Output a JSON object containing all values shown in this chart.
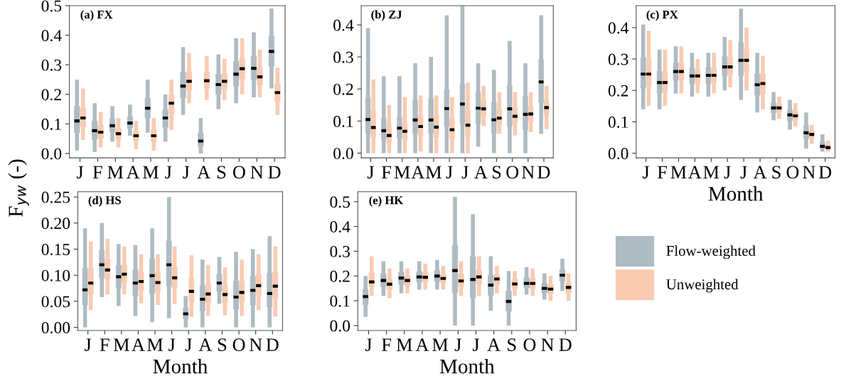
{
  "chart_data": [
    {
      "type": "box",
      "title": "(a) FX",
      "ylabel": "F$_{yw}$ (-)",
      "categories": [
        "J",
        "F",
        "M",
        "A",
        "M",
        "J",
        "J",
        "A",
        "S",
        "O",
        "N",
        "D"
      ],
      "ylim": [
        -0.015,
        0.5
      ],
      "yticks": [
        {
          "value": 0.0,
          "label": "0.0"
        },
        0.1,
        0.2,
        0.3,
        0.4,
        0.5
      ],
      "series": [
        {
          "color": "#aebbc3",
          "boxes": [
            {
              "low": 0.01,
              "q1": 0.07,
              "median": 0.11,
              "q3": 0.16,
              "high": 0.25
            },
            {
              "low": 0.005,
              "q1": 0.048,
              "median": 0.077,
              "q3": 0.11,
              "high": 0.17
            },
            {
              "low": 0.04,
              "q1": 0.073,
              "median": 0.094,
              "q3": 0.117,
              "high": 0.16
            },
            {
              "low": 0.06,
              "q1": 0.086,
              "median": 0.103,
              "q3": 0.125,
              "high": 0.165
            },
            {
              "low": 0.07,
              "q1": 0.12,
              "median": 0.153,
              "q3": 0.187,
              "high": 0.25
            },
            {
              "low": 0.04,
              "q1": 0.088,
              "median": 0.12,
              "q3": 0.148,
              "high": 0.2
            },
            {
              "low": 0.13,
              "q1": 0.188,
              "median": 0.228,
              "q3": 0.274,
              "high": 0.36
            },
            {
              "low": 0.0,
              "q1": 0.025,
              "median": 0.042,
              "q3": 0.069,
              "high": 0.12
            },
            {
              "low": 0.15,
              "q1": 0.2,
              "median": 0.233,
              "q3": 0.268,
              "high": 0.335
            },
            {
              "low": 0.17,
              "q1": 0.228,
              "median": 0.268,
              "q3": 0.311,
              "high": 0.39
            },
            {
              "low": 0.19,
              "q1": 0.248,
              "median": 0.288,
              "q3": 0.33,
              "high": 0.41
            },
            {
              "low": 0.22,
              "q1": 0.295,
              "median": 0.345,
              "q3": 0.397,
              "high": 0.49
            }
          ]
        },
        {
          "color": "#f9cbb1",
          "boxes": [
            {
              "low": 0.045,
              "q1": 0.09,
              "median": 0.12,
              "q3": 0.155,
              "high": 0.22
            },
            {
              "low": 0.02,
              "q1": 0.051,
              "median": 0.072,
              "q3": 0.096,
              "high": 0.14
            },
            {
              "low": 0.02,
              "q1": 0.048,
              "median": 0.067,
              "q3": 0.085,
              "high": 0.12
            },
            {
              "low": 0.015,
              "q1": 0.042,
              "median": 0.06,
              "q3": 0.077,
              "high": 0.11
            },
            {
              "low": 0.01,
              "q1": 0.04,
              "median": 0.06,
              "q3": 0.081,
              "high": 0.12
            },
            {
              "low": 0.08,
              "q1": 0.134,
              "median": 0.17,
              "q3": 0.198,
              "high": 0.25
            },
            {
              "low": 0.17,
              "q1": 0.214,
              "median": 0.244,
              "q3": 0.277,
              "high": 0.34
            },
            {
              "low": 0.18,
              "q1": 0.22,
              "median": 0.246,
              "q3": 0.276,
              "high": 0.33
            },
            {
              "low": 0.18,
              "q1": 0.218,
              "median": 0.244,
              "q3": 0.27,
              "high": 0.32
            },
            {
              "low": 0.2,
              "q1": 0.252,
              "median": 0.287,
              "q3": 0.323,
              "high": 0.39
            },
            {
              "low": 0.19,
              "q1": 0.231,
              "median": 0.259,
              "q3": 0.29,
              "high": 0.35
            },
            {
              "low": 0.13,
              "q1": 0.176,
              "median": 0.206,
              "q3": 0.236,
              "high": 0.29
            }
          ]
        }
      ]
    },
    {
      "type": "box",
      "title": "(b) ZJ",
      "categories": [
        "J",
        "F",
        "M",
        "A",
        "M",
        "J",
        "J",
        "A",
        "S",
        "O",
        "N",
        "D"
      ],
      "ylim": [
        -0.015,
        0.46
      ],
      "yticks": [
        {
          "value": 0.0,
          "label": "0.0"
        },
        0.1,
        0.2,
        0.3,
        0.4
      ],
      "series": [
        {
          "color": "#aebbc3",
          "boxes": [
            {
              "low": 0.0,
              "q1": 0.063,
              "median": 0.105,
              "q3": 0.173,
              "high": 0.39
            },
            {
              "low": 0.0,
              "q1": 0.042,
              "median": 0.07,
              "q3": 0.109,
              "high": 0.24
            },
            {
              "low": 0.0,
              "q1": 0.047,
              "median": 0.078,
              "q3": 0.113,
              "high": 0.24
            },
            {
              "low": 0.0,
              "q1": 0.062,
              "median": 0.103,
              "q3": 0.165,
              "high": 0.28
            },
            {
              "low": 0.0,
              "q1": 0.062,
              "median": 0.103,
              "q3": 0.171,
              "high": 0.3
            },
            {
              "low": 0.0,
              "q1": 0.083,
              "median": 0.139,
              "q3": 0.199,
              "high": 0.43
            },
            {
              "low": 0.0,
              "q1": 0.092,
              "median": 0.153,
              "q3": 0.215,
              "high": 0.46
            },
            {
              "low": 0.02,
              "q1": 0.092,
              "median": 0.14,
              "q3": 0.189,
              "high": 0.28
            },
            {
              "low": 0.0,
              "q1": 0.062,
              "median": 0.104,
              "q3": 0.159,
              "high": 0.26
            },
            {
              "low": 0.0,
              "q1": 0.083,
              "median": 0.138,
              "q3": 0.211,
              "high": 0.35
            },
            {
              "low": 0.0,
              "q1": 0.073,
              "median": 0.121,
              "q3": 0.177,
              "high": 0.28
            },
            {
              "low": 0.06,
              "q1": 0.157,
              "median": 0.222,
              "q3": 0.293,
              "high": 0.43
            }
          ]
        },
        {
          "color": "#f9cbb1",
          "boxes": [
            {
              "low": 0.0,
              "q1": 0.048,
              "median": 0.08,
              "q3": 0.133,
              "high": 0.23
            },
            {
              "low": 0.0,
              "q1": 0.033,
              "median": 0.055,
              "q3": 0.088,
              "high": 0.15
            },
            {
              "low": 0.0,
              "q1": 0.041,
              "median": 0.068,
              "q3": 0.093,
              "high": 0.175
            },
            {
              "low": 0.005,
              "q1": 0.052,
              "median": 0.083,
              "q3": 0.117,
              "high": 0.18
            },
            {
              "low": 0.0,
              "q1": 0.049,
              "median": 0.081,
              "q3": 0.116,
              "high": 0.18
            },
            {
              "low": 0.0,
              "q1": 0.044,
              "median": 0.073,
              "q3": 0.109,
              "high": 0.175
            },
            {
              "low": 0.0,
              "q1": 0.052,
              "median": 0.087,
              "q3": 0.134,
              "high": 0.22
            },
            {
              "low": 0.085,
              "q1": 0.117,
              "median": 0.138,
              "q3": 0.163,
              "high": 0.21
            },
            {
              "low": 0.06,
              "q1": 0.089,
              "median": 0.109,
              "q3": 0.137,
              "high": 0.19
            },
            {
              "low": 0.055,
              "q1": 0.091,
              "median": 0.115,
              "q3": 0.141,
              "high": 0.19
            },
            {
              "low": 0.065,
              "q1": 0.099,
              "median": 0.122,
              "q3": 0.146,
              "high": 0.19
            },
            {
              "low": 0.075,
              "q1": 0.116,
              "median": 0.142,
              "q3": 0.166,
              "high": 0.21
            }
          ]
        }
      ]
    },
    {
      "type": "box",
      "title": "(c) PX",
      "xlabel": "Month",
      "categories": [
        "J",
        "F",
        "M",
        "A",
        "M",
        "J",
        "J",
        "A",
        "S",
        "O",
        "N",
        "D"
      ],
      "ylim": [
        -0.015,
        0.47
      ],
      "yticks": [
        {
          "value": 0.0,
          "label": "0.0"
        },
        0.1,
        0.2,
        0.3,
        0.4
      ],
      "series": [
        {
          "color": "#aebbc3",
          "boxes": [
            {
              "low": 0.14,
              "q1": 0.207,
              "median": 0.252,
              "q3": 0.306,
              "high": 0.41
            },
            {
              "low": 0.14,
              "q1": 0.191,
              "median": 0.225,
              "q3": 0.261,
              "high": 0.33
            },
            {
              "low": 0.19,
              "q1": 0.232,
              "median": 0.26,
              "q3": 0.288,
              "high": 0.34
            },
            {
              "low": 0.18,
              "q1": 0.22,
              "median": 0.246,
              "q3": 0.272,
              "high": 0.32
            },
            {
              "low": 0.18,
              "q1": 0.221,
              "median": 0.248,
              "q3": 0.273,
              "high": 0.32
            },
            {
              "low": 0.2,
              "q1": 0.245,
              "median": 0.275,
              "q3": 0.308,
              "high": 0.37
            },
            {
              "low": 0.17,
              "q1": 0.247,
              "median": 0.296,
              "q3": 0.353,
              "high": 0.46
            },
            {
              "low": 0.13,
              "q1": 0.184,
              "median": 0.218,
              "q3": 0.253,
              "high": 0.32
            },
            {
              "low": 0.105,
              "q1": 0.128,
              "median": 0.144,
              "q3": 0.162,
              "high": 0.195
            },
            {
              "low": 0.075,
              "q1": 0.103,
              "median": 0.122,
              "q3": 0.139,
              "high": 0.17
            },
            {
              "low": 0.015,
              "q1": 0.045,
              "median": 0.065,
              "q3": 0.088,
              "high": 0.13
            },
            {
              "low": 0.005,
              "q1": 0.015,
              "median": 0.022,
              "q3": 0.035,
              "high": 0.06
            }
          ]
        },
        {
          "color": "#f9cbb1",
          "boxes": [
            {
              "low": 0.15,
              "q1": 0.213,
              "median": 0.252,
              "q3": 0.301,
              "high": 0.39
            },
            {
              "low": 0.15,
              "q1": 0.195,
              "median": 0.225,
              "q3": 0.261,
              "high": 0.33
            },
            {
              "low": 0.19,
              "q1": 0.232,
              "median": 0.26,
              "q3": 0.288,
              "high": 0.34
            },
            {
              "low": 0.19,
              "q1": 0.224,
              "median": 0.246,
              "q3": 0.265,
              "high": 0.3
            },
            {
              "low": 0.19,
              "q1": 0.225,
              "median": 0.248,
              "q3": 0.273,
              "high": 0.32
            },
            {
              "low": 0.21,
              "q1": 0.249,
              "median": 0.275,
              "q3": 0.305,
              "high": 0.36
            },
            {
              "low": 0.2,
              "q1": 0.258,
              "median": 0.296,
              "q3": 0.332,
              "high": 0.4
            },
            {
              "low": 0.14,
              "q1": 0.189,
              "median": 0.222,
              "q3": 0.253,
              "high": 0.31
            },
            {
              "low": 0.11,
              "q1": 0.13,
              "median": 0.144,
              "q3": 0.157,
              "high": 0.18
            },
            {
              "low": 0.085,
              "q1": 0.105,
              "median": 0.119,
              "q3": 0.133,
              "high": 0.16
            },
            {
              "low": 0.03,
              "q1": 0.048,
              "median": 0.06,
              "q3": 0.071,
              "high": 0.09
            },
            {
              "low": 0.005,
              "q1": 0.013,
              "median": 0.018,
              "q3": 0.026,
              "high": 0.04
            }
          ]
        }
      ]
    },
    {
      "type": "box",
      "title": "(d) HS",
      "xlabel": "Month",
      "categories": [
        "J",
        "F",
        "M",
        "A",
        "M",
        "J",
        "J",
        "A",
        "S",
        "O",
        "N",
        "D"
      ],
      "ylim": [
        -0.006,
        0.26
      ],
      "yticks": [
        {
          "value": 0.0,
          "label": "0.00"
        },
        {
          "value": 0.05,
          "label": "0.05"
        },
        {
          "value": 0.1,
          "label": "0.10"
        },
        {
          "value": 0.15,
          "label": "0.15"
        },
        {
          "value": 0.2,
          "label": "0.20"
        },
        {
          "value": 0.25,
          "label": "0.25"
        }
      ],
      "series": [
        {
          "color": "#aebbc3",
          "boxes": [
            {
              "low": 0.0,
              "q1": 0.043,
              "median": 0.072,
              "q3": 0.113,
              "high": 0.19
            },
            {
              "low": 0.058,
              "q1": 0.095,
              "median": 0.12,
              "q3": 0.148,
              "high": 0.2
            },
            {
              "low": 0.041,
              "q1": 0.075,
              "median": 0.097,
              "q3": 0.119,
              "high": 0.16
            },
            {
              "low": 0.022,
              "q1": 0.06,
              "median": 0.085,
              "q3": 0.111,
              "high": 0.158
            },
            {
              "low": 0.01,
              "q1": 0.064,
              "median": 0.099,
              "q3": 0.131,
              "high": 0.19
            },
            {
              "low": 0.018,
              "q1": 0.079,
              "median": 0.12,
              "q3": 0.166,
              "high": 0.25
            },
            {
              "low": 0.0,
              "q1": 0.016,
              "median": 0.026,
              "q3": 0.038,
              "high": 0.06
            },
            {
              "low": 0.0,
              "q1": 0.032,
              "median": 0.054,
              "q3": 0.08,
              "high": 0.13
            },
            {
              "low": 0.045,
              "q1": 0.069,
              "median": 0.085,
              "q3": 0.102,
              "high": 0.135
            },
            {
              "low": 0.0,
              "q1": 0.035,
              "median": 0.058,
              "q3": 0.089,
              "high": 0.145
            },
            {
              "low": 0.0,
              "q1": 0.043,
              "median": 0.071,
              "q3": 0.098,
              "high": 0.15
            },
            {
              "low": 0.0,
              "q1": 0.039,
              "median": 0.065,
              "q3": 0.104,
              "high": 0.175
            }
          ]
        },
        {
          "color": "#f9cbb1",
          "boxes": [
            {
              "low": 0.033,
              "q1": 0.064,
              "median": 0.085,
              "q3": 0.113,
              "high": 0.165
            },
            {
              "low": 0.063,
              "q1": 0.092,
              "median": 0.11,
              "q3": 0.131,
              "high": 0.17
            },
            {
              "low": 0.063,
              "q1": 0.086,
              "median": 0.102,
              "q3": 0.12,
              "high": 0.155
            },
            {
              "low": 0.046,
              "q1": 0.071,
              "median": 0.088,
              "q3": 0.106,
              "high": 0.14
            },
            {
              "low": 0.043,
              "q1": 0.069,
              "median": 0.086,
              "q3": 0.105,
              "high": 0.14
            },
            {
              "low": 0.045,
              "q1": 0.075,
              "median": 0.095,
              "q3": 0.116,
              "high": 0.155
            },
            {
              "low": 0.02,
              "q1": 0.049,
              "median": 0.069,
              "q3": 0.094,
              "high": 0.138
            },
            {
              "low": 0.022,
              "q1": 0.047,
              "median": 0.064,
              "q3": 0.084,
              "high": 0.12
            },
            {
              "low": 0.023,
              "q1": 0.047,
              "median": 0.063,
              "q3": 0.081,
              "high": 0.115
            },
            {
              "low": 0.022,
              "q1": 0.049,
              "median": 0.067,
              "q3": 0.089,
              "high": 0.13
            },
            {
              "low": 0.033,
              "q1": 0.061,
              "median": 0.08,
              "q3": 0.101,
              "high": 0.14
            },
            {
              "low": 0.021,
              "q1": 0.056,
              "median": 0.079,
              "q3": 0.106,
              "high": 0.155
            }
          ]
        }
      ]
    },
    {
      "type": "box",
      "title": "(e) HK",
      "xlabel": "Month",
      "legend": "right",
      "categories": [
        "J",
        "F",
        "M",
        "A",
        "M",
        "J",
        "J",
        "A",
        "S",
        "O",
        "N",
        "D"
      ],
      "ylim": [
        -0.02,
        0.54
      ],
      "yticks": [
        {
          "value": 0.0,
          "label": "0.0"
        },
        0.1,
        0.2,
        0.3,
        0.4,
        0.5
      ],
      "series": [
        {
          "name": "Flow-weighted",
          "color": "#aebbc3",
          "boxes": [
            {
              "low": 0.035,
              "q1": 0.084,
              "median": 0.117,
              "q3": 0.146,
              "high": 0.2
            },
            {
              "low": 0.12,
              "q1": 0.158,
              "median": 0.182,
              "q3": 0.209,
              "high": 0.26
            },
            {
              "low": 0.13,
              "q1": 0.167,
              "median": 0.192,
              "q3": 0.216,
              "high": 0.26
            },
            {
              "low": 0.145,
              "q1": 0.176,
              "median": 0.196,
              "q3": 0.218,
              "high": 0.26
            },
            {
              "low": 0.145,
              "q1": 0.178,
              "median": 0.2,
              "q3": 0.223,
              "high": 0.265
            },
            {
              "low": 0.0,
              "q1": 0.133,
              "median": 0.222,
              "q3": 0.325,
              "high": 0.52
            },
            {
              "low": 0.0,
              "q1": 0.112,
              "median": 0.186,
              "q3": 0.279,
              "high": 0.45
            },
            {
              "low": 0.06,
              "q1": 0.122,
              "median": 0.163,
              "q3": 0.203,
              "high": 0.28
            },
            {
              "low": 0.0,
              "q1": 0.058,
              "median": 0.097,
              "q3": 0.14,
              "high": 0.22
            },
            {
              "low": 0.125,
              "q1": 0.152,
              "median": 0.17,
              "q3": 0.193,
              "high": 0.235
            },
            {
              "low": 0.105,
              "q1": 0.132,
              "median": 0.15,
              "q3": 0.171,
              "high": 0.21
            },
            {
              "low": 0.14,
              "q1": 0.178,
              "median": 0.203,
              "q3": 0.226,
              "high": 0.27
            }
          ]
        },
        {
          "name": "Unweighted",
          "color": "#f9cbb1",
          "boxes": [
            {
              "low": 0.12,
              "q1": 0.158,
              "median": 0.176,
              "q3": 0.213,
              "high": 0.28
            },
            {
              "low": 0.11,
              "q1": 0.145,
              "median": 0.167,
              "q3": 0.189,
              "high": 0.23
            },
            {
              "low": 0.13,
              "q1": 0.161,
              "median": 0.182,
              "q3": 0.199,
              "high": 0.23
            },
            {
              "low": 0.145,
              "q1": 0.175,
              "median": 0.195,
              "q3": 0.214,
              "high": 0.25
            },
            {
              "low": 0.145,
              "q1": 0.172,
              "median": 0.19,
              "q3": 0.208,
              "high": 0.24
            },
            {
              "low": 0.12,
              "q1": 0.156,
              "median": 0.18,
              "q3": 0.208,
              "high": 0.26
            },
            {
              "low": 0.12,
              "q1": 0.166,
              "median": 0.196,
              "q3": 0.225,
              "high": 0.28
            },
            {
              "low": 0.13,
              "q1": 0.165,
              "median": 0.188,
              "q3": 0.206,
              "high": 0.24
            },
            {
              "low": 0.12,
              "q1": 0.149,
              "median": 0.168,
              "q3": 0.187,
              "high": 0.22
            },
            {
              "low": 0.12,
              "q1": 0.15,
              "median": 0.17,
              "q3": 0.191,
              "high": 0.23
            },
            {
              "low": 0.1,
              "q1": 0.128,
              "median": 0.147,
              "q3": 0.166,
              "high": 0.2
            },
            {
              "low": 0.1,
              "q1": 0.132,
              "median": 0.154,
              "q3": 0.174,
              "high": 0.21
            }
          ]
        }
      ]
    }
  ]
}
